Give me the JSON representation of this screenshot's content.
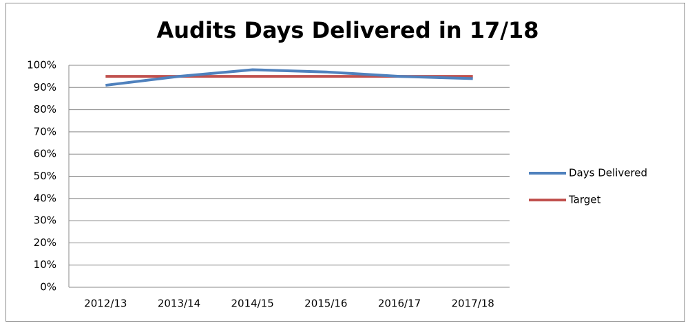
{
  "chart_data": {
    "type": "line",
    "title": "Audits Days Delivered in 17/18",
    "categories": [
      "2012/13",
      "2013/14",
      "2014/15",
      "2015/16",
      "2016/17",
      "2017/18"
    ],
    "series": [
      {
        "name": "Days Delivered",
        "color": "#4f81bd",
        "values": [
          91,
          95,
          98,
          97,
          95,
          94
        ]
      },
      {
        "name": "Target",
        "color": "#c0504d",
        "values": [
          95,
          95,
          95,
          95,
          95,
          95
        ]
      }
    ],
    "ylim": [
      0,
      100
    ],
    "yticks": [
      {
        "value": 0,
        "label": "0%"
      },
      {
        "value": 10,
        "label": "10%"
      },
      {
        "value": 20,
        "label": "20%"
      },
      {
        "value": 30,
        "label": "30%"
      },
      {
        "value": 40,
        "label": "40%"
      },
      {
        "value": 50,
        "label": "50%"
      },
      {
        "value": 60,
        "label": "60%"
      },
      {
        "value": 70,
        "label": "70%"
      },
      {
        "value": 80,
        "label": "80%"
      },
      {
        "value": 90,
        "label": "90%"
      },
      {
        "value": 100,
        "label": "100%"
      }
    ],
    "grid": true,
    "legend": "right"
  }
}
